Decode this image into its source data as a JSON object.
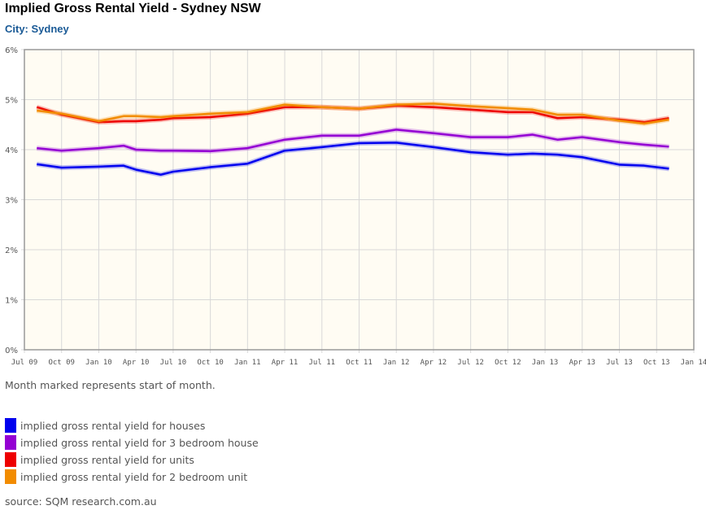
{
  "chart_data": {
    "type": "line",
    "title": "Implied Gross Rental Yield - Sydney NSW",
    "subtitle": "City: Sydney",
    "ylim": [
      0,
      6
    ],
    "yticks": [
      "0%",
      "1%",
      "2%",
      "3%",
      "4%",
      "5%",
      "6%"
    ],
    "xticks": [
      "Jul 09",
      "Oct 09",
      "Jan 10",
      "Apr 10",
      "Jul 10",
      "Oct 10",
      "Jan 11",
      "Apr 11",
      "Jul 11",
      "Oct 11",
      "Jan 12",
      "Apr 12",
      "Jul 12",
      "Oct 12",
      "Jan 13",
      "Apr 13",
      "Jul 13",
      "Oct 13",
      "Jan 14"
    ],
    "grid": true,
    "x_months": [
      1,
      3,
      6,
      8,
      9,
      11,
      12,
      15,
      18,
      21,
      24,
      27,
      30,
      33,
      36,
      39,
      41,
      43,
      45,
      48,
      50,
      52
    ],
    "series": [
      {
        "name": "implied gross rental yield for houses",
        "color": "#0000ee",
        "values": [
          3.71,
          3.64,
          3.66,
          3.68,
          3.6,
          3.5,
          3.56,
          3.65,
          3.72,
          3.98,
          4.05,
          4.13,
          4.14,
          4.05,
          3.95,
          3.9,
          3.92,
          3.9,
          3.85,
          3.7,
          3.68,
          3.62
        ]
      },
      {
        "name": "implied gross rental yield for 3 bedroom house",
        "color": "#9400d3",
        "values": [
          4.03,
          3.98,
          4.03,
          4.08,
          4.0,
          3.98,
          3.98,
          3.97,
          4.03,
          4.2,
          4.28,
          4.28,
          4.4,
          4.33,
          4.25,
          4.25,
          4.3,
          4.2,
          4.25,
          4.15,
          4.1,
          4.06
        ]
      },
      {
        "name": "implied gross rental yield for units",
        "color": "#ee0000",
        "values": [
          4.85,
          4.7,
          4.55,
          4.57,
          4.57,
          4.6,
          4.63,
          4.65,
          4.72,
          4.85,
          4.85,
          4.82,
          4.88,
          4.85,
          4.8,
          4.75,
          4.75,
          4.63,
          4.65,
          4.6,
          4.55,
          4.63
        ]
      },
      {
        "name": "implied gross rental yield for 2 bedroom unit",
        "color": "#f28c00",
        "values": [
          4.78,
          4.72,
          4.57,
          4.67,
          4.67,
          4.65,
          4.67,
          4.72,
          4.75,
          4.9,
          4.85,
          4.82,
          4.9,
          4.92,
          4.87,
          4.83,
          4.8,
          4.7,
          4.7,
          4.58,
          4.52,
          4.6
        ]
      }
    ]
  },
  "note": "Month marked represents start of month.",
  "source": "source: SQM research.com.au"
}
